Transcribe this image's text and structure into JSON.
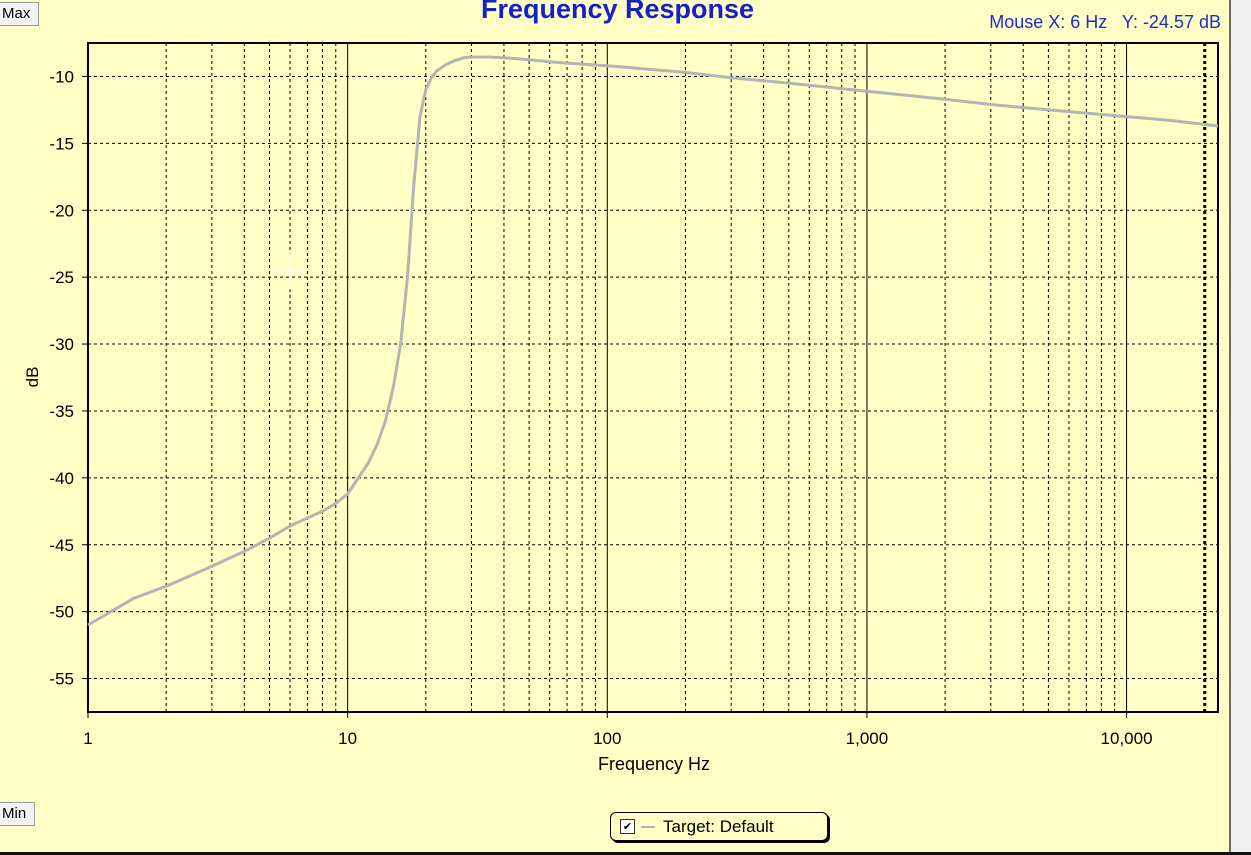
{
  "buttons": {
    "max_label": "Max",
    "min_label": "Min"
  },
  "mouse_readout": "Mouse X: 6 Hz   Y: -24.57 dB",
  "legend": {
    "label": "Target: Default",
    "checked_glyph": "✔"
  },
  "colors": {
    "background": "#ffffc6",
    "title": "#1420c8",
    "curve": "#b4b4b4",
    "grid": "#000000",
    "cursor": "#ffffff"
  },
  "chart_data": {
    "type": "line",
    "title": "Frequency Response",
    "xlabel": "Frequency Hz",
    "ylabel": "dB",
    "x_scale": "log",
    "xlim": [
      1,
      22500
    ],
    "ylim": [
      -57.5,
      -7.5
    ],
    "x_ticks": [
      1,
      10,
      100,
      1000,
      10000
    ],
    "x_tick_labels": [
      "1",
      "10",
      "100",
      "1,000",
      "10,000"
    ],
    "y_ticks": [
      -10,
      -15,
      -20,
      -25,
      -30,
      -35,
      -40,
      -45,
      -50,
      -55
    ],
    "y_tick_labels": [
      "-10",
      "-15",
      "-20",
      "-25",
      "-30",
      "-35",
      "-40",
      "-45",
      "-50",
      "-55"
    ],
    "grid": true,
    "legend_position": "bottom-center",
    "cursor_point": {
      "x": 6,
      "y": -24.57
    },
    "series": [
      {
        "name": "Target: Default",
        "x": [
          1,
          1.5,
          2,
          3,
          4,
          5,
          6,
          7,
          8,
          9,
          10,
          11,
          12,
          13,
          14,
          15,
          16,
          17,
          18,
          19,
          20,
          21,
          22,
          24,
          26,
          28,
          30,
          35,
          40,
          50,
          60,
          70,
          100,
          200,
          300,
          500,
          1000,
          2000,
          3000,
          5000,
          10000,
          15000,
          22500
        ],
        "y": [
          -51,
          -49,
          -48.1,
          -46.6,
          -45.5,
          -44.5,
          -43.6,
          -43,
          -42.5,
          -41.9,
          -41.2,
          -40,
          -38.9,
          -37.5,
          -35.7,
          -33.2,
          -30,
          -25,
          -18,
          -13,
          -11,
          -10.1,
          -9.6,
          -9.1,
          -8.8,
          -8.6,
          -8.55,
          -8.55,
          -8.6,
          -8.75,
          -8.9,
          -9,
          -9.2,
          -9.7,
          -10.1,
          -10.5,
          -11.1,
          -11.7,
          -12.1,
          -12.5,
          -13,
          -13.3,
          -13.7
        ]
      }
    ]
  }
}
